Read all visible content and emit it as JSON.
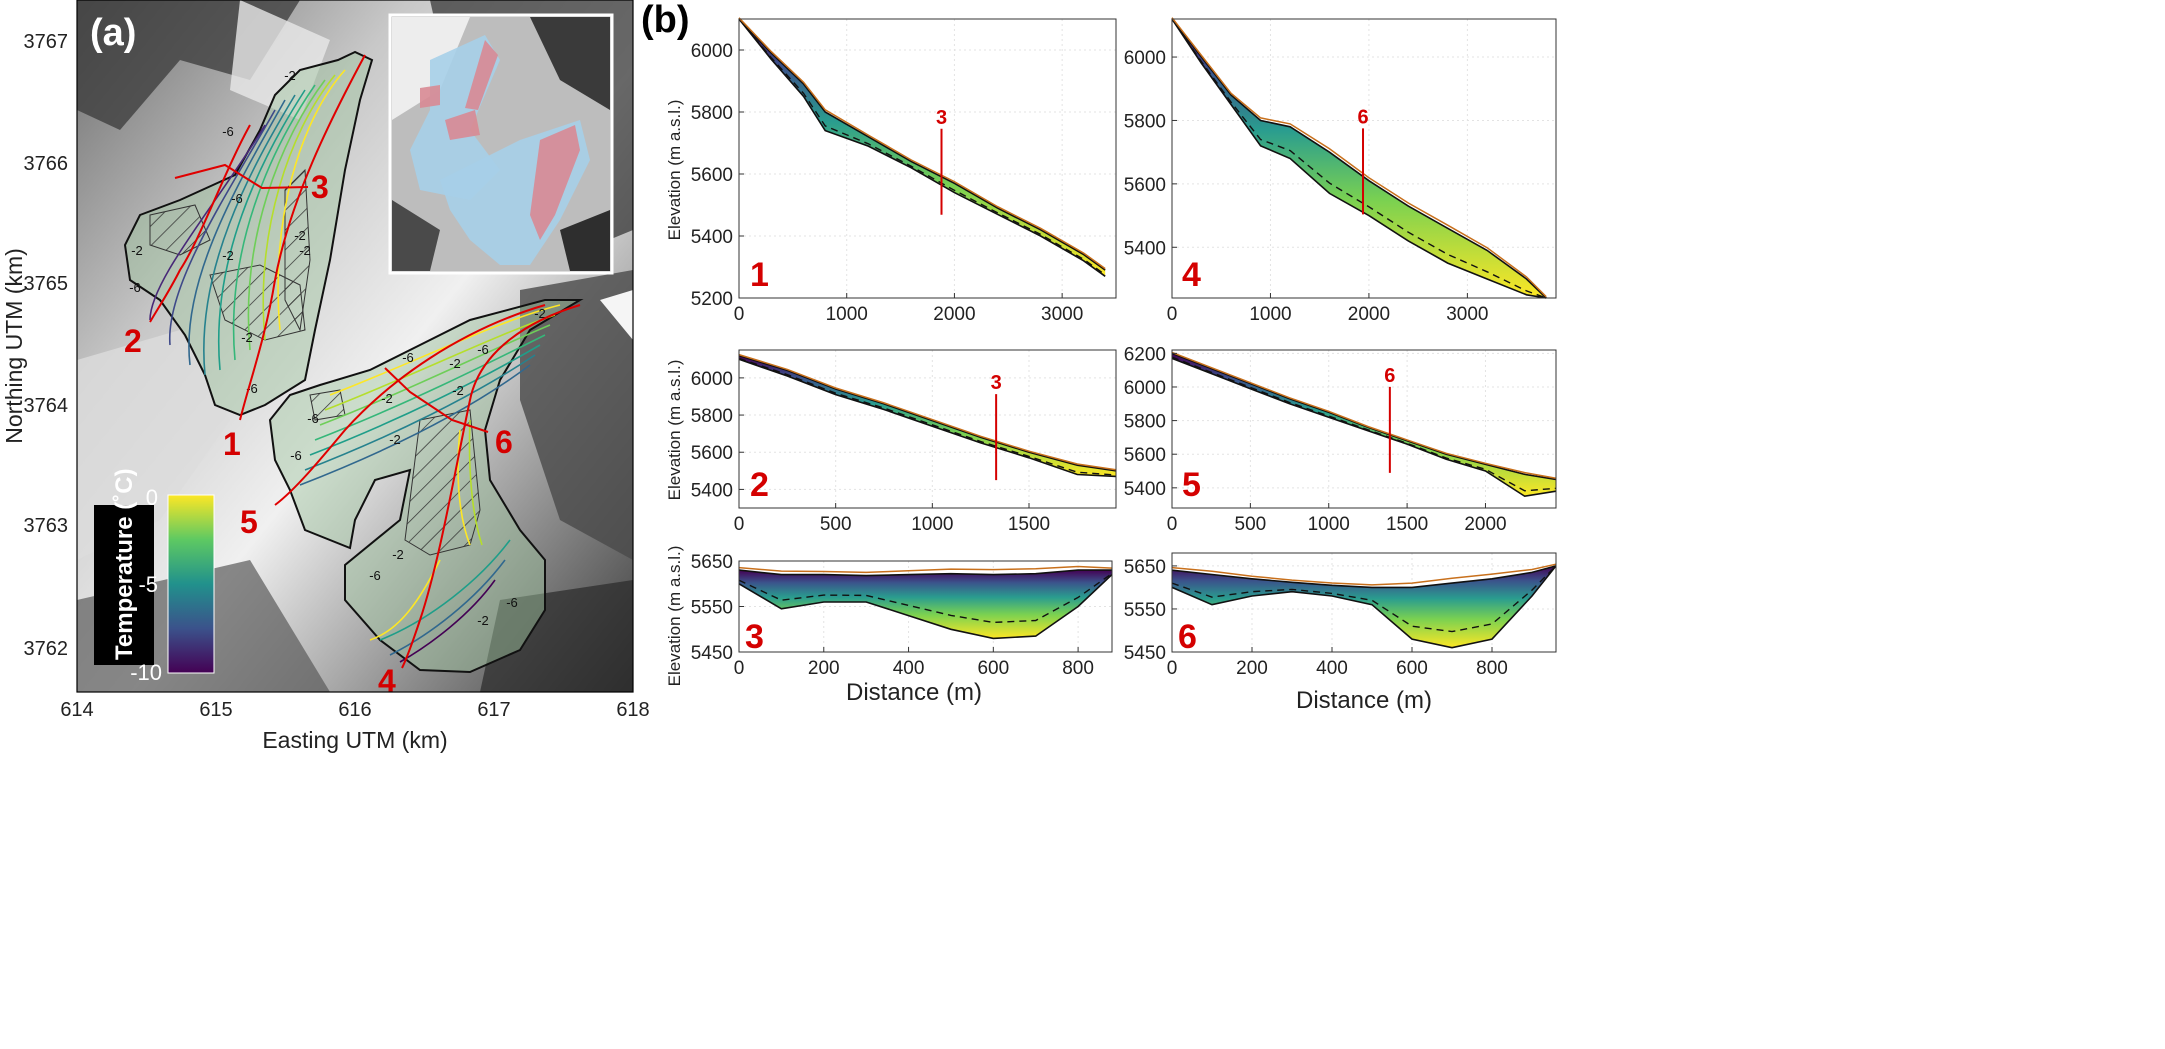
{
  "panel_a": {
    "label": "(a)",
    "xlabel": "Easting UTM (km)",
    "ylabel": "Northing UTM (km)",
    "xticks": [
      "614",
      "615",
      "616",
      "617",
      "618"
    ],
    "yticks": [
      "3767",
      "3766",
      "3765",
      "3764",
      "3763",
      "3762"
    ],
    "colorbar": {
      "label": "Temperature (˚C)",
      "ticks": [
        "0",
        "-5",
        "-10"
      ],
      "colors": [
        "#fde725",
        "#5ec962",
        "#21918c",
        "#3b528b",
        "#440154"
      ]
    },
    "contour_labels": [
      "-2",
      "-6",
      "-6",
      "-2",
      "-2",
      "-6",
      "-2",
      "-6",
      "-2",
      "-2",
      "-6",
      "-2",
      "-6",
      "-2",
      "-2",
      "-2",
      "-6",
      "-2",
      "-6",
      "-6",
      "-2",
      "-2",
      "-6"
    ],
    "profile_numbers": [
      "1",
      "2",
      "3",
      "4",
      "5",
      "6"
    ]
  },
  "panel_b": {
    "label": "(b)",
    "ylabel": "Elevation (m a.s.l.)",
    "xlabel": "Distance (m)",
    "marker_labels": [
      "3",
      "6",
      "3",
      "6"
    ]
  },
  "chart_data": [
    {
      "type": "area",
      "id": "profile-1",
      "panel_number": "1",
      "x": [
        0,
        300,
        600,
        800,
        1200,
        1600,
        2000,
        2400,
        2800,
        3200,
        3400
      ],
      "surface": [
        6100,
        5990,
        5890,
        5800,
        5720,
        5640,
        5570,
        5490,
        5420,
        5340,
        5290
      ],
      "bed": [
        6100,
        5970,
        5850,
        5740,
        5690,
        5620,
        5540,
        5470,
        5400,
        5320,
        5270
      ],
      "xlim": [
        0,
        3500
      ],
      "ylim": [
        5200,
        6100
      ],
      "xticks": [
        "0",
        "1000",
        "2000",
        "3000"
      ],
      "yticks": [
        "5200",
        "5400",
        "5600",
        "5800",
        "6000"
      ],
      "marker": {
        "label": "3",
        "x": 1880
      }
    },
    {
      "type": "area",
      "id": "profile-4",
      "panel_number": "4",
      "x": [
        0,
        300,
        600,
        900,
        1200,
        1600,
        2000,
        2400,
        2800,
        3200,
        3600,
        3800
      ],
      "surface": [
        6120,
        6000,
        5880,
        5800,
        5780,
        5700,
        5610,
        5530,
        5460,
        5390,
        5300,
        5240
      ],
      "bed": [
        6120,
        5980,
        5850,
        5720,
        5680,
        5570,
        5500,
        5420,
        5350,
        5300,
        5250,
        5240
      ],
      "xlim": [
        0,
        3900
      ],
      "ylim": [
        5240,
        6120
      ],
      "xticks": [
        "0",
        "1000",
        "2000",
        "3000"
      ],
      "yticks": [
        "5400",
        "5600",
        "5800",
        "6000"
      ],
      "marker": {
        "label": "6",
        "x": 1940
      }
    },
    {
      "type": "area",
      "id": "profile-2",
      "panel_number": "2",
      "x": [
        0,
        250,
        500,
        750,
        1000,
        1250,
        1500,
        1750,
        1950
      ],
      "surface": [
        6120,
        6040,
        5940,
        5860,
        5770,
        5680,
        5600,
        5530,
        5500
      ],
      "bed": [
        6100,
        6010,
        5910,
        5830,
        5740,
        5650,
        5570,
        5480,
        5470
      ],
      "xlim": [
        0,
        1950
      ],
      "ylim": [
        5300,
        6150
      ],
      "xticks": [
        "0",
        "500",
        "1000",
        "1500"
      ],
      "yticks": [
        "5400",
        "5600",
        "5800",
        "6000"
      ],
      "marker": {
        "label": "3",
        "x": 1330
      }
    },
    {
      "type": "area",
      "id": "profile-5",
      "panel_number": "5",
      "x": [
        0,
        250,
        500,
        750,
        1000,
        1250,
        1500,
        1750,
        2000,
        2250,
        2450
      ],
      "surface": [
        6200,
        6110,
        6020,
        5930,
        5850,
        5760,
        5680,
        5600,
        5540,
        5480,
        5450
      ],
      "bed": [
        6170,
        6080,
        5990,
        5900,
        5820,
        5740,
        5660,
        5570,
        5500,
        5350,
        5380
      ],
      "xlim": [
        0,
        2450
      ],
      "ylim": [
        5280,
        6220
      ],
      "xticks": [
        "0",
        "500",
        "1000",
        "1500",
        "2000"
      ],
      "yticks": [
        "5400",
        "5600",
        "5800",
        "6000",
        "6200"
      ],
      "marker": {
        "label": "6",
        "x": 1390
      }
    },
    {
      "type": "area",
      "id": "profile-3",
      "panel_number": "3",
      "x": [
        0,
        100,
        200,
        300,
        400,
        500,
        600,
        700,
        800,
        880
      ],
      "surface": [
        5630,
        5620,
        5620,
        5618,
        5620,
        5622,
        5620,
        5622,
        5630,
        5630
      ],
      "bed": [
        5600,
        5545,
        5560,
        5560,
        5530,
        5500,
        5480,
        5485,
        5550,
        5620
      ],
      "xlim": [
        0,
        880
      ],
      "ylim": [
        5450,
        5650
      ],
      "xticks": [
        "0",
        "200",
        "400",
        "600",
        "800"
      ],
      "yticks": [
        "5450",
        "5550",
        "5650"
      ]
    },
    {
      "type": "area",
      "id": "profile-6",
      "panel_number": "6",
      "x": [
        0,
        100,
        200,
        300,
        400,
        500,
        600,
        700,
        800,
        900,
        960
      ],
      "surface": [
        5640,
        5630,
        5620,
        5612,
        5605,
        5600,
        5600,
        5610,
        5620,
        5635,
        5650
      ],
      "bed": [
        5600,
        5560,
        5580,
        5590,
        5580,
        5560,
        5480,
        5460,
        5480,
        5580,
        5650
      ],
      "xlim": [
        0,
        960
      ],
      "ylim": [
        5450,
        5680
      ],
      "xticks": [
        "0",
        "200",
        "400",
        "600",
        "800"
      ],
      "yticks": [
        "5450",
        "5550",
        "5650"
      ]
    }
  ]
}
